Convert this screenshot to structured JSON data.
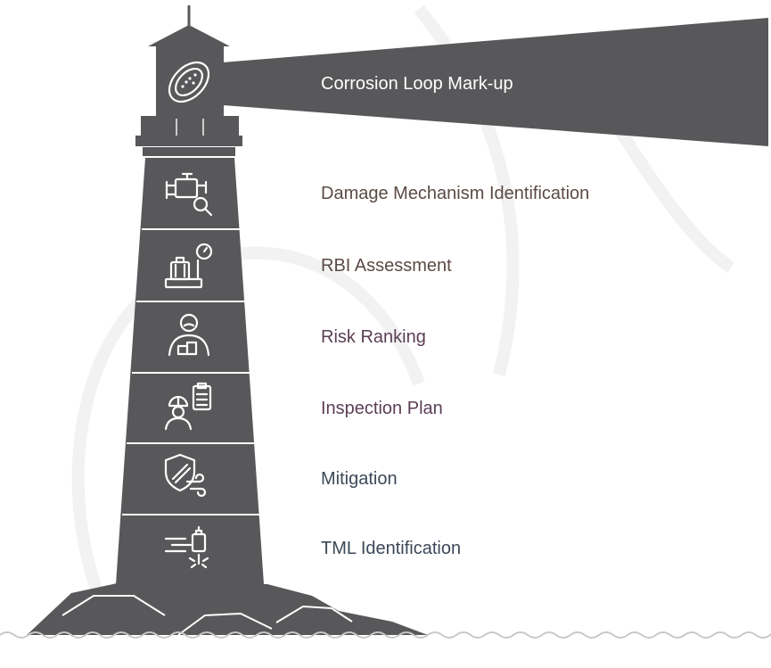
{
  "colors": {
    "tower": "#58585a",
    "ink": "#ffffff",
    "beam_label": "#ffffff",
    "label_brown": "#5b4a45",
    "label_plum": "#5b3f55",
    "label_slate": "#3c4858",
    "ground_line": "#c8c8c8",
    "watermark": "#f1f1f1"
  },
  "beam": {
    "label": "Corrosion Loop Mark-up",
    "icon": "corrosion-patch-icon"
  },
  "steps": [
    {
      "label": "Damage Mechanism Identification",
      "icon": "valve-inspection-icon",
      "color": "label_brown"
    },
    {
      "label": "RBI Assessment",
      "icon": "luggage-scale-icon",
      "color": "label_brown"
    },
    {
      "label": "Risk Ranking",
      "icon": "worried-person-icon",
      "color": "label_plum"
    },
    {
      "label": "Inspection Plan",
      "icon": "engineer-clipboard-icon",
      "color": "label_plum"
    },
    {
      "label": "Mitigation",
      "icon": "shield-wind-icon",
      "color": "label_slate"
    },
    {
      "label": "TML Identification",
      "icon": "spark-plug-icon",
      "color": "label_slate"
    }
  ]
}
